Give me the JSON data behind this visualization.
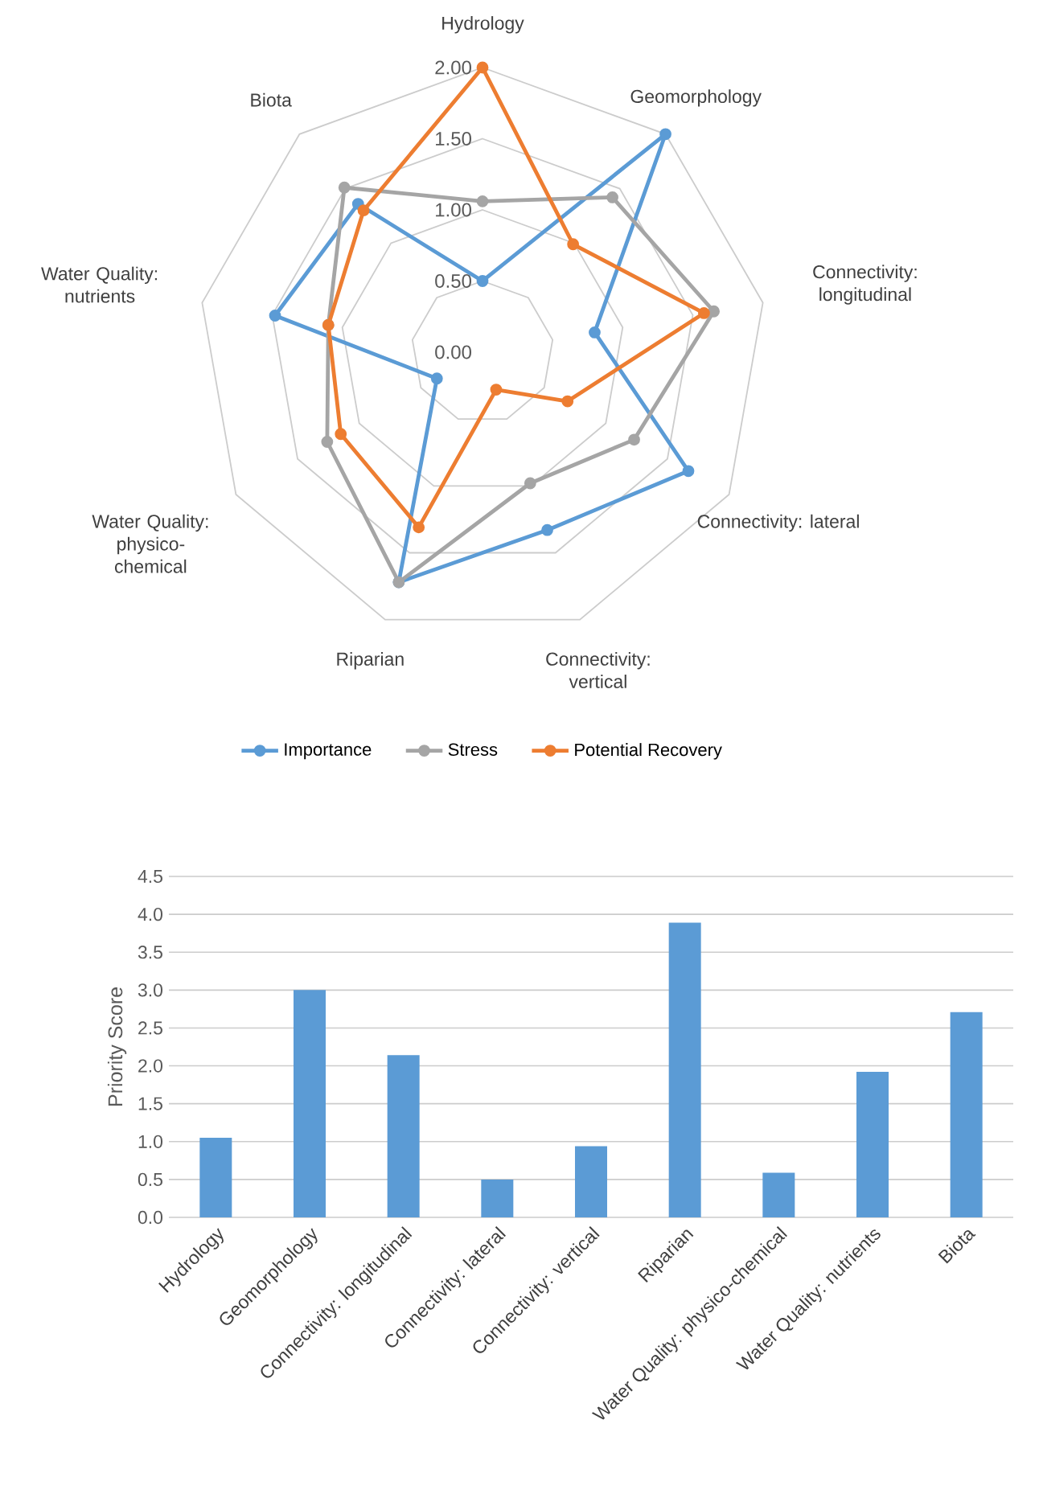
{
  "chart_data": [
    {
      "type": "radar",
      "categories": [
        "Hydrology",
        "Geomorphology",
        "Connectivity: longitudinal",
        "Connectivity: lateral",
        "Connectivity: vertical",
        "Riparian",
        "Water Quality: physico-chemical",
        "Water Quality: nutrients",
        "Biota"
      ],
      "ylim": [
        0,
        2
      ],
      "yticks": [
        {
          "value": 0,
          "label": "0.00"
        },
        {
          "value": 0.5,
          "label": "0.50"
        },
        {
          "value": 1,
          "label": "1.00"
        },
        {
          "value": 1.5,
          "label": "1.50"
        },
        {
          "value": 2,
          "label": "2.00"
        }
      ],
      "grid": true,
      "legend": "bottom",
      "marker": "circle",
      "series": [
        {
          "name": "Importance",
          "color": "#5b9bd5",
          "values": [
            0.5,
            2.0,
            0.8,
            1.67,
            1.33,
            1.72,
            0.37,
            1.48,
            1.36
          ]
        },
        {
          "name": "Stress",
          "color": "#a5a5a5",
          "values": [
            1.06,
            1.42,
            1.65,
            1.23,
            0.98,
            1.72,
            1.26,
            1.1,
            1.51
          ]
        },
        {
          "name": "Potential Recovery",
          "color": "#ed7d31",
          "values": [
            2.0,
            0.99,
            1.58,
            0.69,
            0.28,
            1.31,
            1.15,
            1.1,
            1.3
          ]
        }
      ]
    },
    {
      "type": "bar",
      "categories": [
        "Hydrology",
        "Geomorphology",
        "Connectivity: longitudinal",
        "Connectivity: lateral",
        "Connectivity: vertical",
        "Riparian",
        "Water Quality: physico-chemical",
        "Water Quality: nutrients",
        "Biota"
      ],
      "values": [
        1.05,
        3.0,
        2.14,
        0.5,
        0.94,
        3.89,
        0.59,
        1.92,
        2.71
      ],
      "color": "#5b9bd5",
      "ylabel": "Priority Score",
      "ylim": [
        0,
        4.5
      ],
      "yticks": [
        {
          "value": 0,
          "label": "0.0"
        },
        {
          "value": 0.5,
          "label": "0.5"
        },
        {
          "value": 1,
          "label": "1.0"
        },
        {
          "value": 1.5,
          "label": "1.5"
        },
        {
          "value": 2,
          "label": "2.0"
        },
        {
          "value": 2.5,
          "label": "2.5"
        },
        {
          "value": 3,
          "label": "3.0"
        },
        {
          "value": 3.5,
          "label": "3.5"
        },
        {
          "value": 4,
          "label": "4.0"
        },
        {
          "value": 4.5,
          "label": "4.5"
        }
      ],
      "grid": "y"
    }
  ]
}
